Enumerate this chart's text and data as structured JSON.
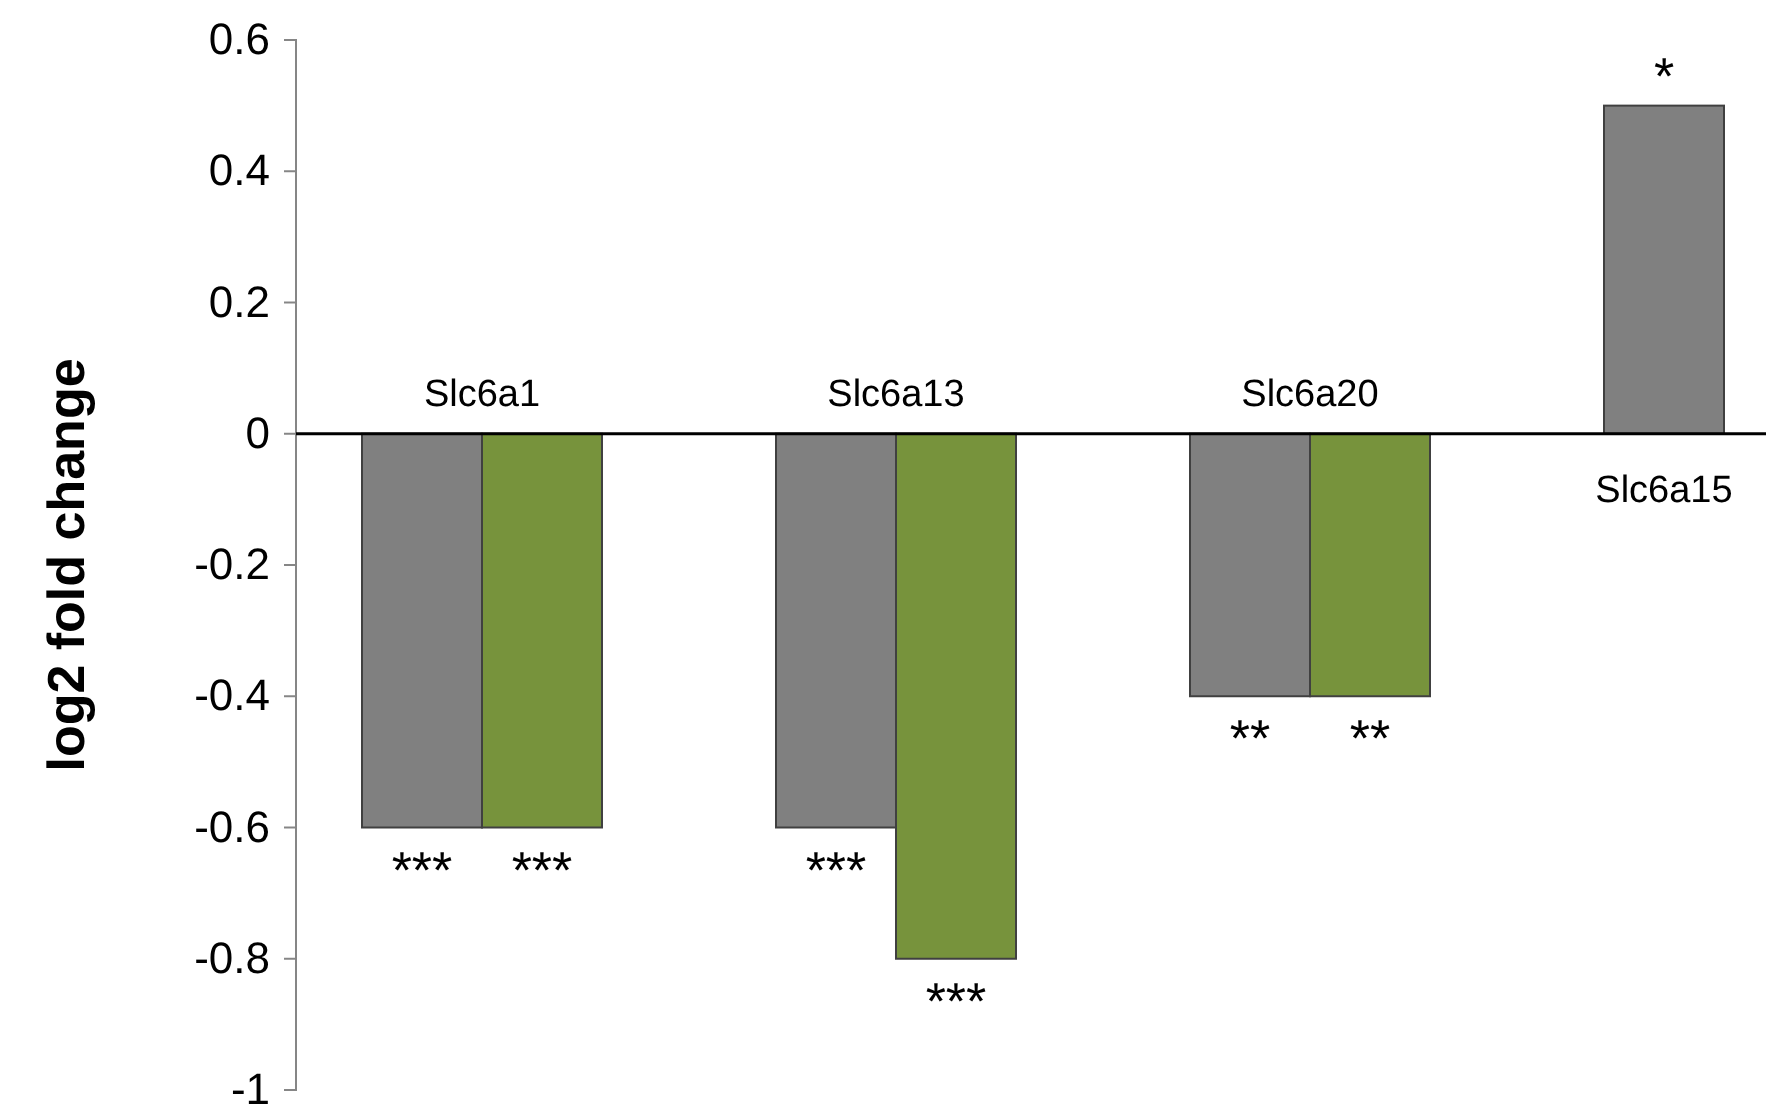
{
  "chart_data": {
    "type": "bar",
    "ylabel": "log2 fold change",
    "categories": [
      "Slc6a1",
      "Slc6a13",
      "Slc6a20",
      "Slc6a15"
    ],
    "series": [
      {
        "color": "#808080",
        "values": [
          -0.6,
          -0.6,
          -0.4,
          0.5
        ]
      },
      {
        "color": "#77933c",
        "values": [
          -0.6,
          -0.8,
          -0.4,
          null
        ]
      }
    ],
    "ylim": [
      -1,
      0.6
    ],
    "yticks": [
      -1,
      -0.8,
      -0.6,
      -0.4,
      -0.2,
      0,
      0.2,
      0.4,
      0.6
    ],
    "grid": false,
    "annotations": [
      {
        "text": "***",
        "x": "Slc6a1",
        "y": -0.6
      },
      {
        "text": "***",
        "x": "Slc6a1",
        "y": -0.6
      },
      {
        "text": "***",
        "x": "Slc6a13",
        "y": -0.6
      },
      {
        "text": "***",
        "x": "Slc6a13",
        "y": -0.8
      },
      {
        "text": "**",
        "x": "Slc6a20",
        "y": -0.4
      },
      {
        "text": "**",
        "x": "Slc6a20",
        "y": -0.4
      },
      {
        "text": "*",
        "x": "Slc6a15",
        "y": 0.5
      }
    ]
  }
}
